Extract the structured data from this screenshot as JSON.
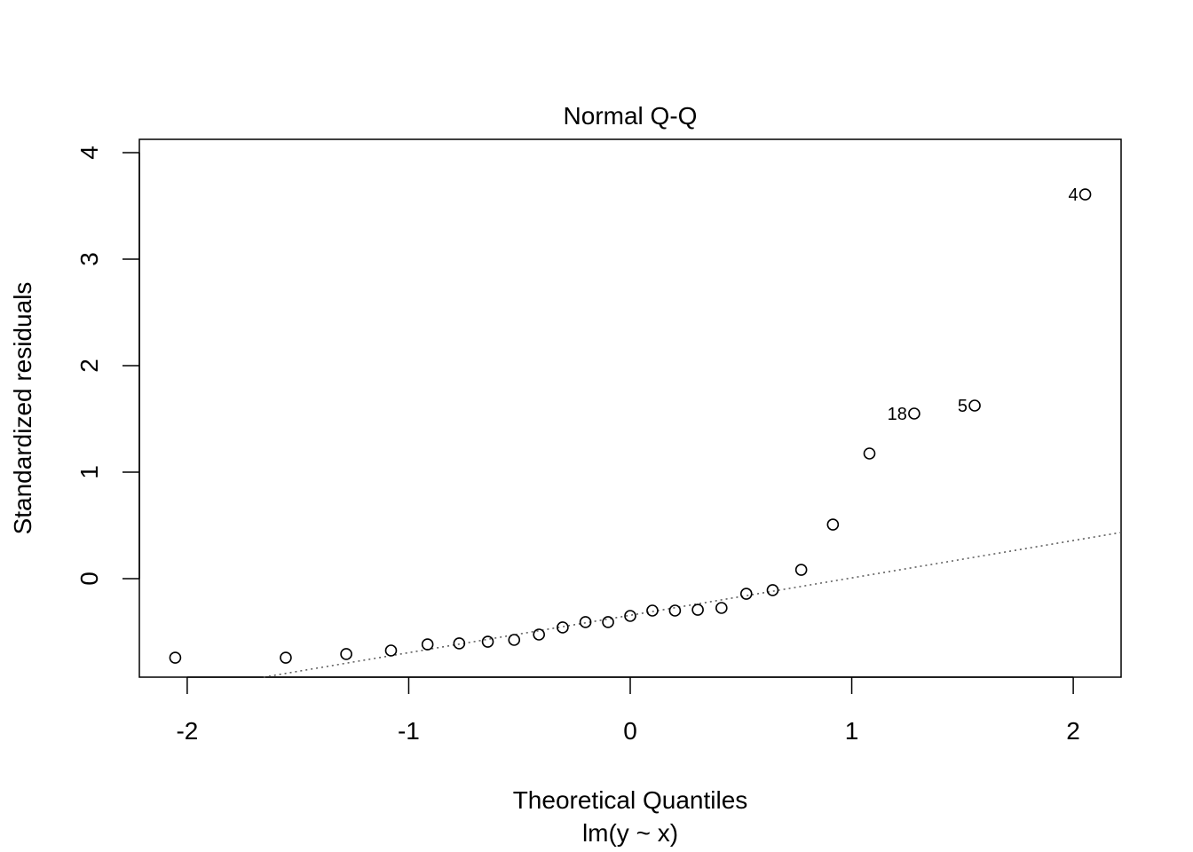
{
  "chart_data": {
    "type": "scatter",
    "title": "Normal Q-Q",
    "xlabel": "Theoretical Quantiles",
    "subtitle": "lm(y ~ x)",
    "ylabel": "Standardized residuals",
    "xlim": [
      -2.216,
      2.216
    ],
    "ylim": [
      -0.925,
      4.125
    ],
    "xticks": [
      -2,
      -1,
      0,
      1,
      2
    ],
    "xtick_labels": [
      "-2",
      "-1",
      "0",
      "1",
      "2"
    ],
    "yticks": [
      0,
      1,
      2,
      3,
      4
    ],
    "ytick_labels": [
      "0",
      "1",
      "2",
      "3",
      "4"
    ],
    "grid": false,
    "points": [
      {
        "x": -2.054,
        "y": -0.742
      },
      {
        "x": -1.555,
        "y": -0.742
      },
      {
        "x": -1.282,
        "y": -0.708
      },
      {
        "x": -1.08,
        "y": -0.675
      },
      {
        "x": -0.915,
        "y": -0.617
      },
      {
        "x": -0.772,
        "y": -0.608
      },
      {
        "x": -0.643,
        "y": -0.592
      },
      {
        "x": -0.524,
        "y": -0.575
      },
      {
        "x": -0.412,
        "y": -0.525
      },
      {
        "x": -0.305,
        "y": -0.458
      },
      {
        "x": -0.202,
        "y": -0.408
      },
      {
        "x": -0.1,
        "y": -0.408
      },
      {
        "x": 0.0,
        "y": -0.35
      },
      {
        "x": 0.1,
        "y": -0.3
      },
      {
        "x": 0.202,
        "y": -0.3
      },
      {
        "x": 0.305,
        "y": -0.292
      },
      {
        "x": 0.412,
        "y": -0.275
      },
      {
        "x": 0.524,
        "y": -0.142
      },
      {
        "x": 0.643,
        "y": -0.108
      },
      {
        "x": 0.772,
        "y": 0.083
      },
      {
        "x": 0.915,
        "y": 0.508
      },
      {
        "x": 1.08,
        "y": 1.175
      },
      {
        "x": 1.282,
        "y": 1.55,
        "label": "18"
      },
      {
        "x": 1.555,
        "y": 1.625,
        "label": "5"
      },
      {
        "x": 2.054,
        "y": 3.608,
        "label": "4"
      }
    ],
    "reference_line": {
      "intercept": -0.344,
      "slope": 0.351,
      "style": "dotted"
    }
  }
}
